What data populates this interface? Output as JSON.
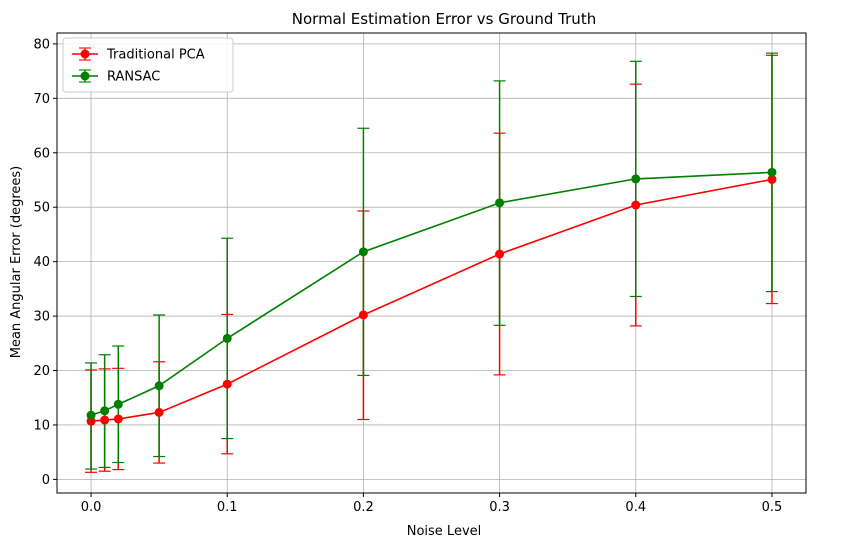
{
  "chart_data": {
    "type": "line",
    "title": "Normal Estimation Error vs Ground Truth",
    "xlabel": "Noise Level",
    "ylabel": "Mean Angular Error (degrees)",
    "x": [
      0.0,
      0.01,
      0.02,
      0.05,
      0.1,
      0.2,
      0.3,
      0.4,
      0.5
    ],
    "xlim": [
      -0.025,
      0.525
    ],
    "ylim": [
      -2.5,
      82
    ],
    "xticks": [
      0.0,
      0.1,
      0.2,
      0.3,
      0.4,
      0.5
    ],
    "xtick_labels": [
      "0.0",
      "0.1",
      "0.2",
      "0.3",
      "0.4",
      "0.5"
    ],
    "yticks": [
      0,
      10,
      20,
      30,
      40,
      50,
      60,
      70,
      80
    ],
    "ytick_labels": [
      "0",
      "10",
      "20",
      "30",
      "40",
      "50",
      "60",
      "70",
      "80"
    ],
    "grid": true,
    "legend_position": "top-left",
    "error_bars": true,
    "series": [
      {
        "name": "Traditional PCA",
        "color": "#ff0000",
        "marker": "circle",
        "values": [
          10.7,
          10.9,
          11.1,
          12.3,
          17.5,
          30.2,
          41.4,
          50.4,
          55.1
        ],
        "err_low": [
          1.3,
          1.5,
          1.8,
          3.0,
          4.7,
          11.0,
          19.2,
          28.2,
          32.3
        ],
        "err_high": [
          20.1,
          20.3,
          20.4,
          21.6,
          30.3,
          49.3,
          63.6,
          72.6,
          77.9
        ]
      },
      {
        "name": "RANSAC",
        "color": "#008000",
        "marker": "circle",
        "values": [
          11.8,
          12.6,
          13.8,
          17.2,
          25.9,
          41.8,
          50.8,
          55.2,
          56.4
        ],
        "err_low": [
          1.9,
          2.2,
          3.1,
          4.2,
          7.5,
          19.1,
          28.3,
          33.6,
          34.5
        ],
        "err_high": [
          21.4,
          22.9,
          24.5,
          30.2,
          44.3,
          64.5,
          73.2,
          76.8,
          78.3
        ]
      }
    ]
  }
}
